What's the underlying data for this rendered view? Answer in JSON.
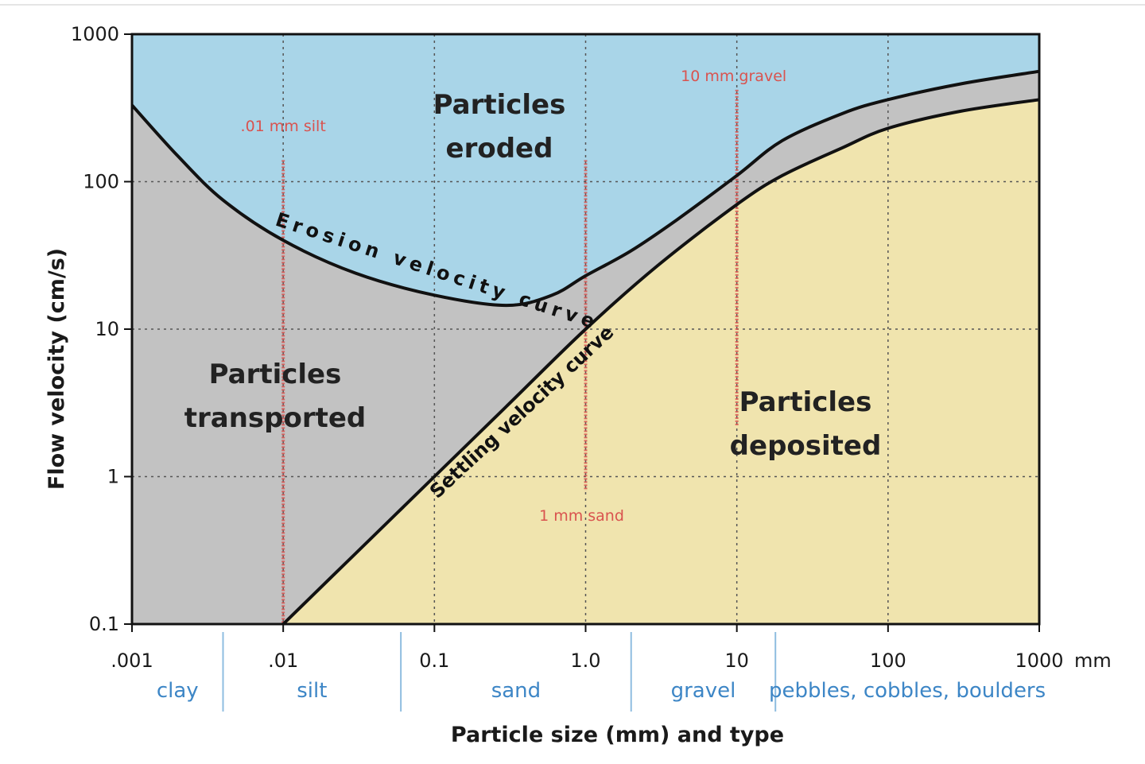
{
  "chart_data": {
    "type": "area",
    "title": "",
    "xlabel": "Particle size (mm) and type",
    "ylabel": "Flow velocity (cm/s)",
    "xscale": "log",
    "yscale": "log",
    "xlim": [
      0.001,
      1000
    ],
    "ylim": [
      0.1,
      1000
    ],
    "grid": true,
    "x_ticks": [
      {
        "value": 0.001,
        "label": ".001"
      },
      {
        "value": 0.01,
        "label": ".01"
      },
      {
        "value": 0.1,
        "label": "0.1"
      },
      {
        "value": 1,
        "label": "1.0"
      },
      {
        "value": 10,
        "label": "10"
      },
      {
        "value": 100,
        "label": "100"
      },
      {
        "value": 1000,
        "label": "1000"
      }
    ],
    "x_unit": "mm",
    "y_ticks": [
      {
        "value": 0.1,
        "label": "0.1"
      },
      {
        "value": 1,
        "label": "1"
      },
      {
        "value": 10,
        "label": "10"
      },
      {
        "value": 100,
        "label": "100"
      },
      {
        "value": 1000,
        "label": "1000"
      }
    ],
    "particle_types": [
      {
        "label": "clay",
        "from": 0.001,
        "to": 0.004
      },
      {
        "label": "silt",
        "from": 0.004,
        "to": 0.06
      },
      {
        "label": "sand",
        "from": 0.06,
        "to": 2
      },
      {
        "label": "gravel",
        "from": 2,
        "to": 18
      },
      {
        "label": "pebbles, cobbles, boulders",
        "from": 18,
        "to": 1000
      }
    ],
    "series": [
      {
        "name": "Erosion velocity curve",
        "color": "#111111",
        "x": [
          0.001,
          0.002,
          0.004,
          0.01,
          0.03,
          0.1,
          0.3,
          0.6,
          1,
          2,
          4,
          10,
          20,
          50,
          100,
          300,
          1000
        ],
        "y": [
          330,
          150,
          75,
          40,
          24,
          17,
          14.5,
          17,
          23,
          34,
          55,
          110,
          190,
          290,
          360,
          460,
          560
        ]
      },
      {
        "name": "Settling velocity curve",
        "color": "#111111",
        "x": [
          0.01,
          0.03,
          0.1,
          0.3,
          1,
          3,
          10,
          20,
          50,
          100,
          300,
          1000
        ],
        "y": [
          0.1,
          0.3,
          1,
          3,
          10,
          27,
          70,
          110,
          170,
          230,
          300,
          360
        ]
      }
    ],
    "regions": [
      {
        "label": "Particles eroded",
        "color": "#a9d5e8"
      },
      {
        "label": "Particles transported",
        "color": "#c2c2c2"
      },
      {
        "label": "Particles deposited",
        "color": "#f0e4ae"
      }
    ],
    "markers": [
      {
        "label": ".01 mm silt",
        "x": 0.01,
        "y_from": 0.1,
        "y_to": 140,
        "color": "#d9534f"
      },
      {
        "label": "1 mm sand",
        "x": 1,
        "y_from": 0.8,
        "y_to": 140,
        "color": "#d9534f"
      },
      {
        "label": "10 mm gravel",
        "x": 10,
        "y_from": 2.2,
        "y_to": 420,
        "color": "#d9534f"
      }
    ],
    "colors": {
      "eroded": "#a9d5e8",
      "transported": "#c2c2c2",
      "deposited": "#f0e4ae",
      "type_labels": "#3d86c6",
      "markers": "#d9534f"
    }
  }
}
